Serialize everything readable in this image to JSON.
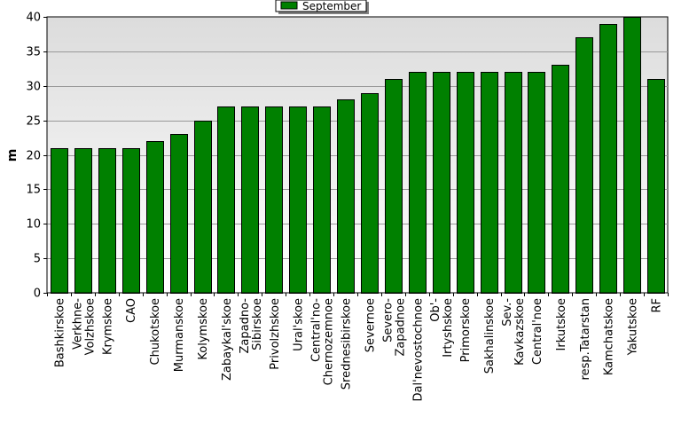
{
  "chart_data": {
    "type": "bar",
    "title": "",
    "xlabel": "",
    "ylabel": "m",
    "ylim": [
      0,
      40
    ],
    "yticks": [
      0,
      5,
      10,
      15,
      20,
      25,
      30,
      35,
      40
    ],
    "grid": true,
    "legend": {
      "placement": "top-center"
    },
    "bar_color": "#008000",
    "plot_background_top": "#dcdcdc",
    "plot_background_bottom": "#ffffff",
    "categories": [
      "Bashkirskoe",
      "Verkhne-Volzhskoe",
      "Krymskoe",
      "CAO",
      "Chukotskoe",
      "Murmanskoe",
      "Kolymskoe",
      "Zabaykal'skoe",
      "Zapadno-Sibirskoe",
      "Privolzhskoe",
      "Ural'skoe",
      "Central'no-Chernozemnoe",
      "Srednesibirskoe",
      "Severnoe",
      "Severo-Zapadnoe",
      "Dal'nevostochnoe",
      "Ob'-Irtyshskoe",
      "Primorskoe",
      "Sakhalinskoe",
      "Sev.-Kavkazskoe",
      "Central'noe",
      "Irkutskoe",
      "resp.Tatarstan",
      "Kamchatskoe",
      "Yakutskoe",
      "RF"
    ],
    "category_lines": [
      [
        "Bashkirskoe"
      ],
      [
        "Verkhne-",
        "Volzhskoe"
      ],
      [
        "Krymskoe"
      ],
      [
        "CAO"
      ],
      [
        "Chukotskoe"
      ],
      [
        "Murmanskoe"
      ],
      [
        "Kolymskoe"
      ],
      [
        "Zabaykal'skoe"
      ],
      [
        "Zapadno-",
        "Sibirskoe"
      ],
      [
        "Privolzhskoe"
      ],
      [
        "Ural'skoe"
      ],
      [
        "Central'no-",
        "Chernozemnoe"
      ],
      [
        "Srednesibirskoe"
      ],
      [
        "Severnoe"
      ],
      [
        "Severo-",
        "Zapadnoe"
      ],
      [
        "Dal'nevostochnoe"
      ],
      [
        "Ob'-",
        "Irtyshskoe"
      ],
      [
        "Primorskoe"
      ],
      [
        "Sakhalinskoe"
      ],
      [
        "Sev.-",
        "Kavkazskoe"
      ],
      [
        "Central'noe"
      ],
      [
        "Irkutskoe"
      ],
      [
        "resp.Tatarstan"
      ],
      [
        "Kamchatskoe"
      ],
      [
        "Yakutskoe"
      ],
      [
        "RF"
      ]
    ],
    "series": [
      {
        "name": "September",
        "values": [
          21,
          21,
          21,
          21,
          22,
          23,
          25,
          27,
          27,
          27,
          27,
          27,
          28,
          29,
          31,
          32,
          32,
          32,
          32,
          32,
          32,
          33,
          37,
          39,
          40,
          31
        ]
      }
    ]
  }
}
